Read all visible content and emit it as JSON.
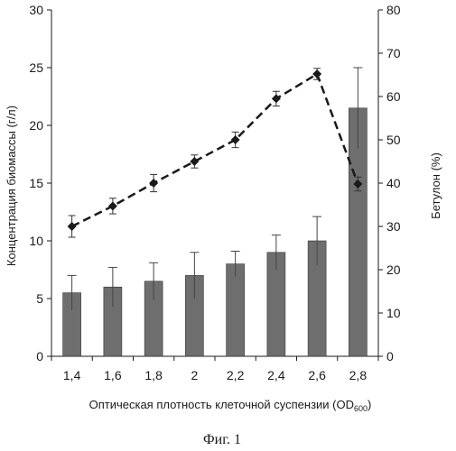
{
  "chart_data": {
    "type": "bar+line",
    "categories": [
      "1,4",
      "1,6",
      "1,8",
      "2",
      "2,2",
      "2,4",
      "2,6",
      "2,8"
    ],
    "bars": {
      "axis": "left",
      "values": [
        5.5,
        6.0,
        6.5,
        7.0,
        8.0,
        9.0,
        10.0,
        21.5
      ],
      "errors": [
        1.5,
        1.7,
        1.6,
        2.0,
        1.1,
        1.5,
        2.1,
        3.5
      ],
      "color": "#6e6e6e"
    },
    "line": {
      "axis": "right",
      "values": [
        30.0,
        34.7,
        40.0,
        45.0,
        50.0,
        59.5,
        65.2,
        39.8
      ],
      "errors": [
        2.5,
        1.8,
        2.0,
        1.5,
        1.8,
        1.7,
        1.3,
        1.6
      ],
      "color": "#1a1a1a",
      "style": "dashed",
      "marker": "diamond"
    },
    "ylim_left": [
      0,
      30
    ],
    "yticks_left": [
      "0",
      "5",
      "10",
      "15",
      "20",
      "25",
      "30"
    ],
    "ylim_right": [
      0,
      80
    ],
    "yticks_right": [
      "0",
      "10",
      "20",
      "30",
      "40",
      "50",
      "60",
      "70",
      "80"
    ],
    "ylabel_left": "Концентрация биомассы (г/л)",
    "ylabel_right": "Бетулон (%)",
    "xlabel_main": "Оптическая плотность клеточной суспензии (OD",
    "xlabel_sub": "600",
    "xlabel_end": ")",
    "caption": "Фиг. 1",
    "grid": false
  }
}
